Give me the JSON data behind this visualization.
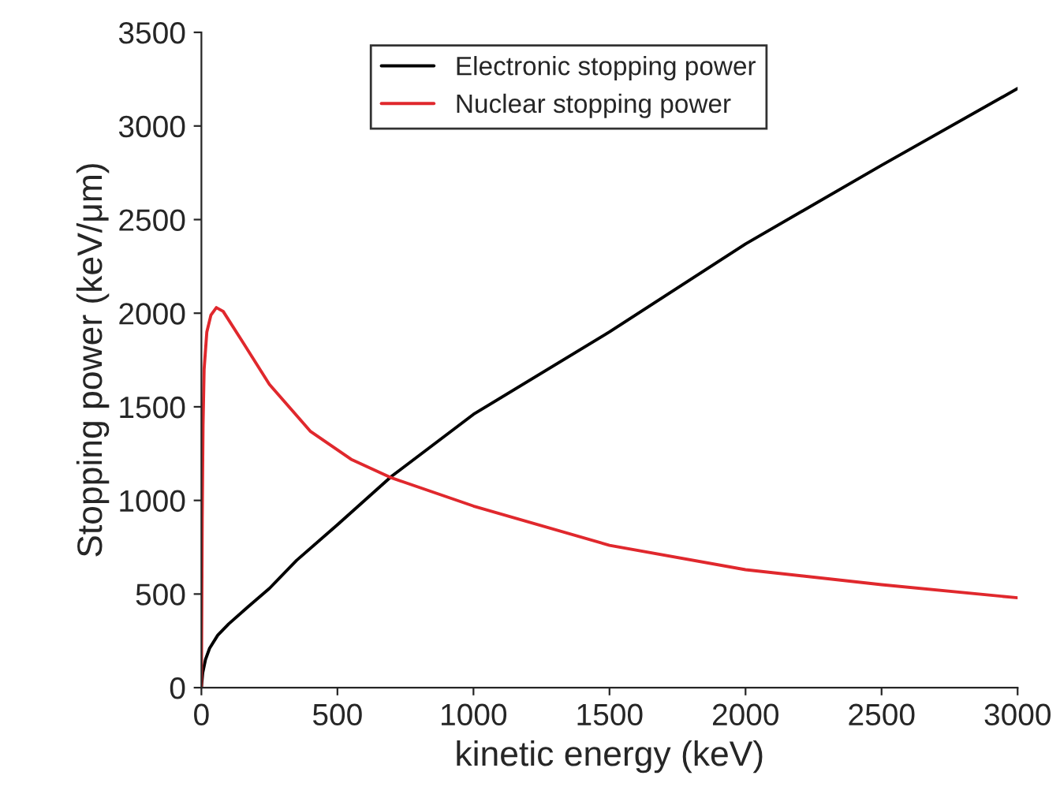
{
  "chart_data": {
    "type": "line",
    "xlabel": "kinetic energy (keV)",
    "ylabel": "Stopping power (keV/μm)",
    "xlim": [
      0,
      3000
    ],
    "ylim": [
      0,
      3500
    ],
    "xticks": [
      0,
      500,
      1000,
      1500,
      2000,
      2500,
      3000
    ],
    "yticks": [
      0,
      500,
      1000,
      1500,
      2000,
      2500,
      3000,
      3500
    ],
    "grid": false,
    "legend": "top",
    "marker": "none",
    "line_style": "solid",
    "series": [
      {
        "name": "Electronic stopping power",
        "color": "#000000",
        "x": [
          0,
          5,
          15,
          30,
          60,
          100,
          170,
          250,
          350,
          500,
          700,
          1000,
          1500,
          2000,
          2500,
          3000
        ],
        "values": [
          0,
          80,
          150,
          210,
          280,
          340,
          430,
          530,
          680,
          870,
          1130,
          1460,
          1900,
          2370,
          2790,
          3200
        ]
      },
      {
        "name": "Nuclear stopping power",
        "color": "#e0282d",
        "x": [
          0,
          3,
          6,
          10,
          20,
          35,
          55,
          80,
          150,
          250,
          400,
          550,
          700,
          1000,
          1500,
          2000,
          2500,
          3000
        ],
        "values": [
          0,
          900,
          1400,
          1700,
          1900,
          1990,
          2030,
          2010,
          1850,
          1620,
          1370,
          1220,
          1120,
          970,
          760,
          630,
          550,
          480
        ]
      }
    ]
  }
}
